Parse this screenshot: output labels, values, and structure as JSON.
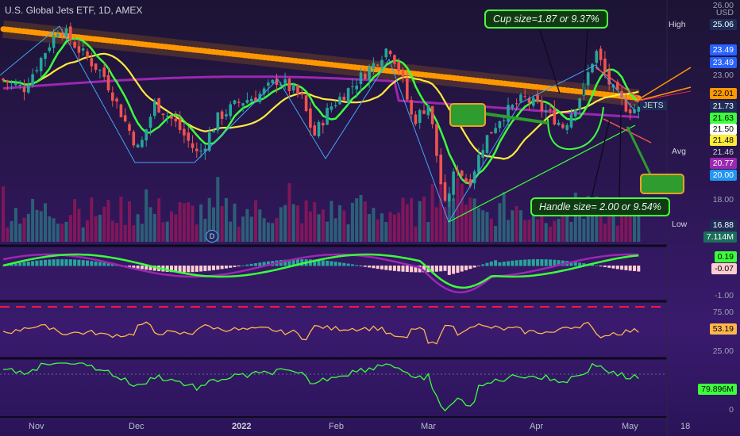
{
  "title": "U.S. Global Jets ETF, 1D, AMEX",
  "currency": "USD",
  "annotations": {
    "cup": "Cup size=1.87 or 9.37%",
    "handle": "Handle size= 2.00 or 9.54%",
    "d_marker": "D"
  },
  "price_labels": {
    "top_scale": "26.00",
    "high_tag": "High",
    "high": "25.06",
    "p1": "23.49",
    "p2": "23.49",
    "p3": "23.00",
    "p4": "22.01",
    "ticker": "JETS",
    "p5": "21.73",
    "p6": "21.63",
    "p7": "21.50",
    "p8": "21.48",
    "avg_tag": "Avg",
    "p9": "21.46",
    "p10": "20.77",
    "p11": "20.00",
    "p12": "18.00",
    "low_tag": "Low",
    "low": "16.88",
    "volume": "7.114M"
  },
  "macd_labels": {
    "v1": "0.19",
    "v2": "-0.07",
    "axis": "-1.00"
  },
  "rsi_labels": {
    "top": "75.00",
    "value": "53.19",
    "bottom": "25.00"
  },
  "obv_labels": {
    "value": "79.896M",
    "zero": "0"
  },
  "x_ticks": [
    "Nov",
    "Dec",
    "2022",
    "Feb",
    "Mar",
    "Apr",
    "May",
    "18"
  ],
  "colors": {
    "bull": "#26a69a",
    "bear": "#ef5350",
    "green_line": "#3cff3c",
    "yellow_line": "#ffeb3b",
    "purple_line": "#9c27b0",
    "orange_band": "#ff9800"
  },
  "chart_data": [
    {
      "type": "line",
      "name": "price",
      "x": [
        "Nov",
        "Dec",
        "2022",
        "Feb",
        "Mar",
        "Apr",
        "May"
      ],
      "close": [
        23.6,
        20.4,
        21.6,
        22.4,
        17.6,
        21.4,
        21.5
      ],
      "high": 25.06,
      "low": 16.88,
      "last": 21.5,
      "ylim": [
        16.5,
        26.0
      ],
      "grid": false
    },
    {
      "type": "bar",
      "name": "volume",
      "last": "7.114M"
    },
    {
      "type": "line",
      "name": "MACD",
      "values_last": [
        0.19,
        -0.07
      ],
      "ylim": [
        -1.0,
        0.3
      ]
    },
    {
      "type": "line",
      "name": "RSI",
      "last": 53.19,
      "ylim": [
        0,
        100
      ],
      "levels": [
        75,
        25
      ]
    },
    {
      "type": "line",
      "name": "OBV",
      "last": "79.896M"
    }
  ]
}
